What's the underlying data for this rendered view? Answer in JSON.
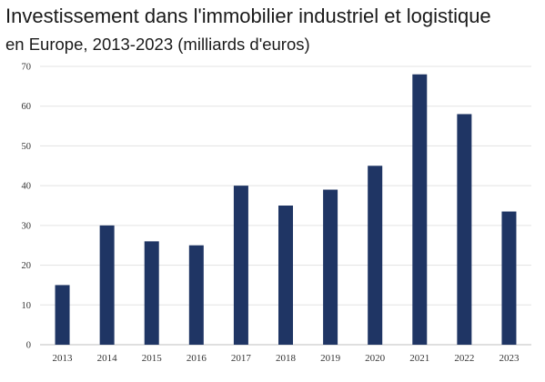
{
  "chart_data": {
    "type": "bar",
    "title_line1": "Investissement dans l'immobilier industriel et logistique",
    "title_line2": "en Europe, 2013-2023 (milliards d'euros)",
    "xlabel": "",
    "ylabel": "",
    "categories": [
      "2013",
      "2014",
      "2015",
      "2016",
      "2017",
      "2018",
      "2019",
      "2020",
      "2021",
      "2022",
      "2023"
    ],
    "values": [
      15,
      30,
      26,
      25,
      40,
      35,
      39,
      45,
      68,
      58,
      33.5
    ],
    "ylim": [
      0,
      70
    ],
    "yticks": [
      "0",
      "10",
      "20",
      "30",
      "40",
      "50",
      "60",
      "70"
    ],
    "grid": true,
    "bar_color": "#1f3564",
    "grid_color": "#e3e3e3"
  }
}
